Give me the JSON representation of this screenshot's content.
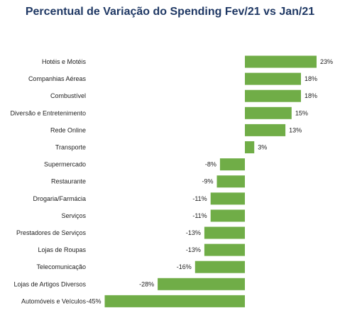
{
  "chart_data": {
    "type": "bar",
    "orientation": "horizontal",
    "title": "Percentual de Variação do Spending  Fev/21 vs Jan/21",
    "categories": [
      "Hotéis e Motéis",
      "Companhias Aéreas",
      "Combustível",
      "Diversão e Entretenimento",
      "Rede Online",
      "Transporte",
      "Supermercado",
      "Restaurante",
      "Drogaria/Farmácia",
      "Serviços",
      "Prestadores de Serviços",
      "Lojas de Roupas",
      "Telecomunicação",
      "Lojas de Artigos Diversos",
      "Automóveis e Veículos"
    ],
    "values": [
      23,
      18,
      18,
      15,
      13,
      3,
      -8,
      -9,
      -11,
      -11,
      -13,
      -13,
      -16,
      -28,
      -45
    ],
    "value_labels": [
      "23%",
      "18%",
      "18%",
      "15%",
      "13%",
      "3%",
      "-8%",
      "-9%",
      "-11%",
      "-11%",
      "-13%",
      "-13%",
      "-16%",
      "-28%",
      "-45%"
    ],
    "xlim": [
      -45,
      23
    ],
    "grid": false,
    "legend": "none",
    "bar_color": "#70ad47"
  }
}
